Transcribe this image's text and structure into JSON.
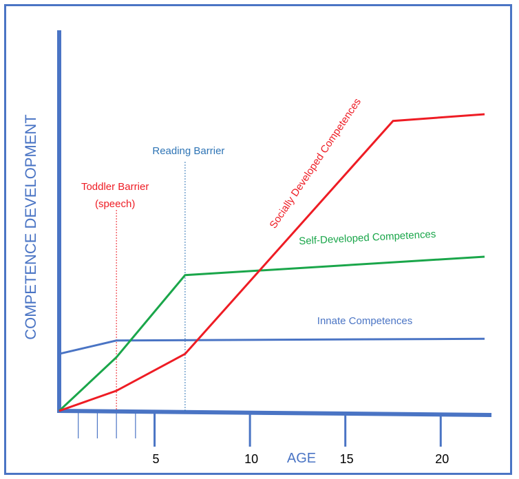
{
  "chart_data": {
    "type": "line",
    "xlabel": "AGE",
    "ylabel": "COMPETENCE DEVELOPMENT",
    "x_tick_labels": [
      5,
      10,
      15,
      20
    ],
    "x_minor_ticks": [
      1,
      2,
      3,
      4
    ],
    "xlim": [
      0,
      22.3
    ],
    "ylim": [
      0,
      100
    ],
    "series": [
      {
        "name": "Innate Competences",
        "color": "#4a74c4",
        "x": [
          0,
          3,
          22.3
        ],
        "y": [
          17,
          21,
          21.5
        ]
      },
      {
        "name": "Self-Developed Competences",
        "color": "#1aa64a",
        "x": [
          0,
          3,
          6.6,
          22.3
        ],
        "y": [
          0,
          16,
          40.5,
          46
        ]
      },
      {
        "name": "Socially Developed Competences",
        "color": "#ee1c24",
        "x": [
          0,
          3,
          6.6,
          17.5,
          22.3
        ],
        "y": [
          0,
          6,
          17,
          86.5,
          88.5
        ]
      }
    ],
    "annotations": [
      {
        "text_lines": [
          "Toddler Barrier",
          "(speech)"
        ],
        "x": 3,
        "color": "#ee1c24"
      },
      {
        "text_lines": [
          "Reading Barrier"
        ],
        "x": 6.6,
        "color": "#2e74b5"
      }
    ]
  }
}
